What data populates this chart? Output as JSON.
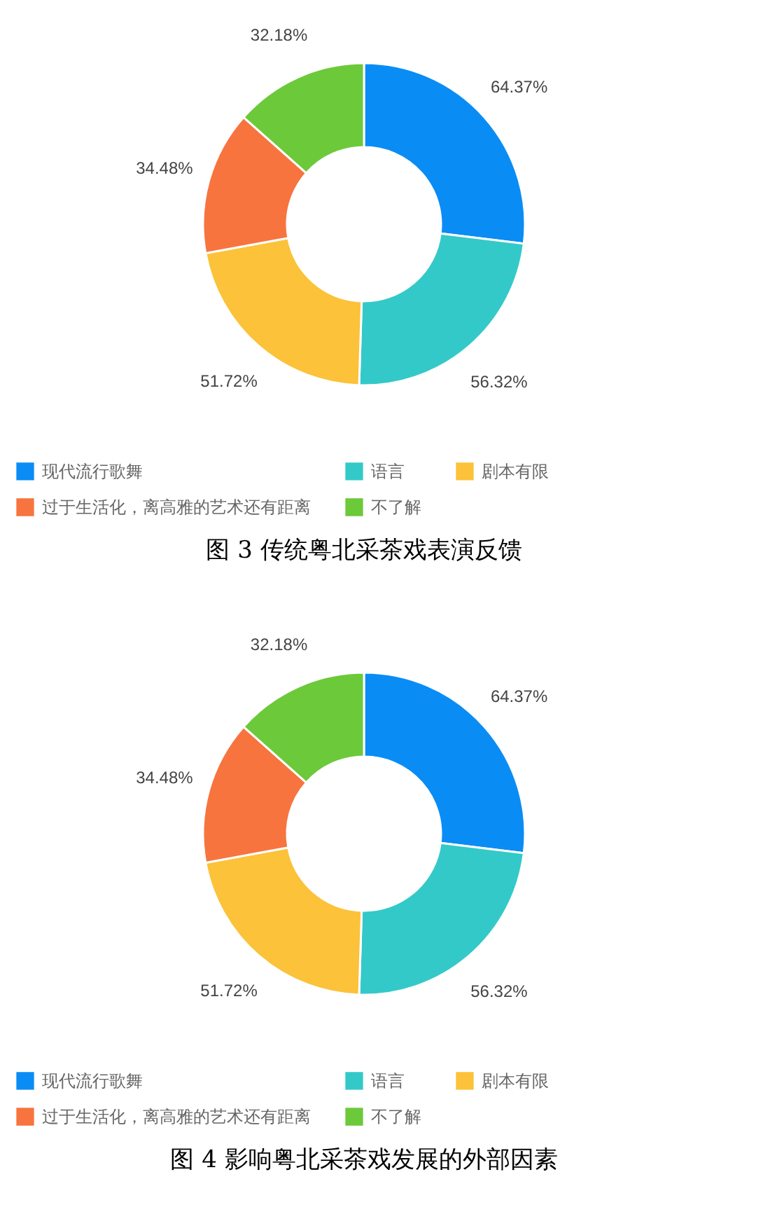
{
  "chart_data": [
    {
      "type": "donut",
      "title": "图 3  传统粤北采茶戏表演反馈",
      "categories": [
        "现代流行歌舞",
        "语言",
        "剧本有限",
        "过于生活化，离高雅的艺术还有距离",
        "不了解"
      ],
      "values": [
        64.37,
        56.32,
        51.72,
        34.48,
        32.18
      ],
      "value_labels": [
        "64.37%",
        "56.32%",
        "51.72%",
        "34.48%",
        "32.18%"
      ],
      "colors": [
        "#0a8cf5",
        "#33c9c9",
        "#fbc23a",
        "#f7743f",
        "#6cc93a"
      ],
      "legend": "bottom"
    },
    {
      "type": "donut",
      "title": "图 4 影响粤北采茶戏发展的外部因素",
      "categories": [
        "现代流行歌舞",
        "语言",
        "剧本有限",
        "过于生活化，离高雅的艺术还有距离",
        "不了解"
      ],
      "values": [
        64.37,
        56.32,
        51.72,
        34.48,
        32.18
      ],
      "value_labels": [
        "64.37%",
        "56.32%",
        "51.72%",
        "34.48%",
        "32.18%"
      ],
      "colors": [
        "#0a8cf5",
        "#33c9c9",
        "#fbc23a",
        "#f7743f",
        "#6cc93a"
      ],
      "legend": "bottom"
    }
  ]
}
